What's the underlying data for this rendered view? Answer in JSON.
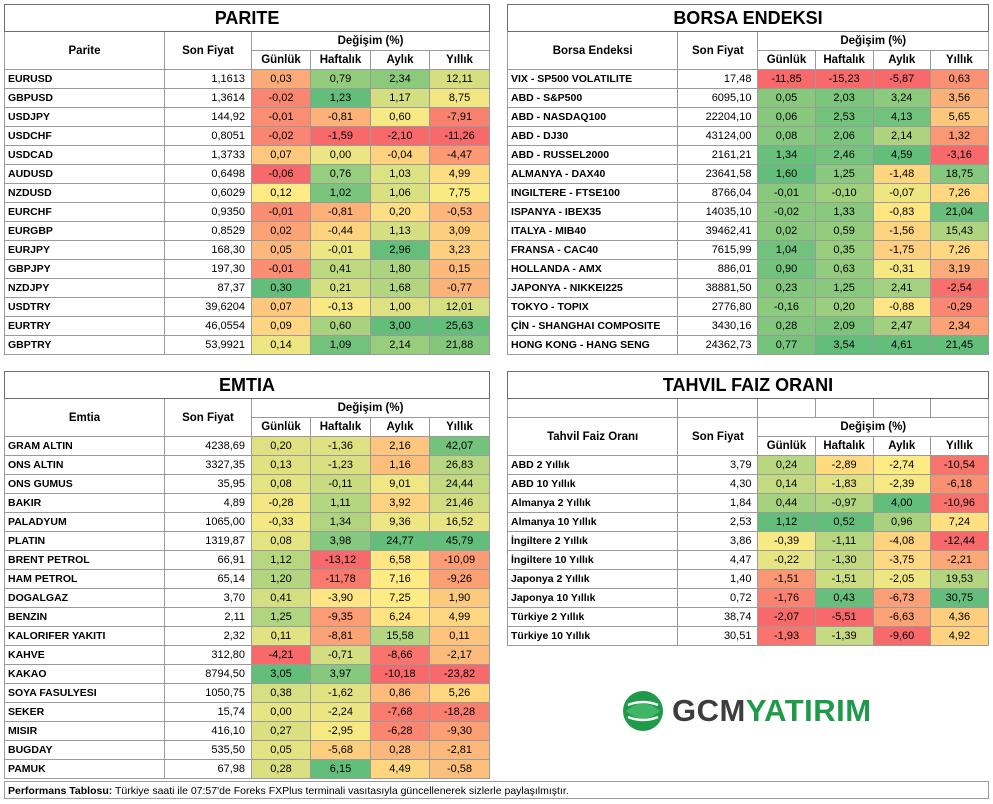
{
  "change_header": "Değişim (%)",
  "period_labels": [
    "Günlük",
    "Haftalık",
    "Aylık",
    "Yıllık"
  ],
  "price_header": "Son Fiyat",
  "parite": {
    "title": "PARITE",
    "name_header": "Parite",
    "rows": [
      {
        "name": "EURUSD",
        "price": "1,1613",
        "d": "0,03",
        "w": "0,79",
        "m": "2,34",
        "y": "12,11"
      },
      {
        "name": "GBPUSD",
        "price": "1,3614",
        "d": "-0,02",
        "w": "1,23",
        "m": "1,17",
        "y": "8,75"
      },
      {
        "name": "USDJPY",
        "price": "144,92",
        "d": "-0,01",
        "w": "-0,81",
        "m": "0,60",
        "y": "-7,91"
      },
      {
        "name": "USDCHF",
        "price": "0,8051",
        "d": "-0,02",
        "w": "-1,59",
        "m": "-2,10",
        "y": "-11,26"
      },
      {
        "name": "USDCAD",
        "price": "1,3733",
        "d": "0,07",
        "w": "0,00",
        "m": "-0,04",
        "y": "-4,47"
      },
      {
        "name": "AUDUSD",
        "price": "0,6498",
        "d": "-0,06",
        "w": "0,76",
        "m": "1,03",
        "y": "4,99"
      },
      {
        "name": "NZDUSD",
        "price": "0,6029",
        "d": "0,12",
        "w": "1,02",
        "m": "1,06",
        "y": "7,75"
      },
      {
        "name": "EURCHF",
        "price": "0,9350",
        "d": "-0,01",
        "w": "-0,81",
        "m": "0,20",
        "y": "-0,53"
      },
      {
        "name": "EURGBP",
        "price": "0,8529",
        "d": "0,02",
        "w": "-0,44",
        "m": "1,13",
        "y": "3,09"
      },
      {
        "name": "EURJPY",
        "price": "168,30",
        "d": "0,05",
        "w": "-0,01",
        "m": "2,96",
        "y": "3,23"
      },
      {
        "name": "GBPJPY",
        "price": "197,30",
        "d": "-0,01",
        "w": "0,41",
        "m": "1,80",
        "y": "0,15"
      },
      {
        "name": "NZDJPY",
        "price": "87,37",
        "d": "0,30",
        "w": "0,21",
        "m": "1,68",
        "y": "-0,77"
      },
      {
        "name": "USDTRY",
        "price": "39,6204",
        "d": "0,07",
        "w": "-0,13",
        "m": "1,00",
        "y": "12,01"
      },
      {
        "name": "EURTRY",
        "price": "46,0554",
        "d": "0,09",
        "w": "0,60",
        "m": "3,00",
        "y": "25,63"
      },
      {
        "name": "GBPTRY",
        "price": "53,9921",
        "d": "0,14",
        "w": "1,09",
        "m": "2,14",
        "y": "21,88"
      }
    ]
  },
  "borsa": {
    "title": "BORSA ENDEKSI",
    "name_header": "Borsa Endeksi",
    "rows": [
      {
        "name": "VIX - SP500 VOLATILITE",
        "price": "17,48",
        "d": "-11,85",
        "w": "-15,23",
        "m": "-5,87",
        "y": "0,63"
      },
      {
        "name": "ABD - S&P500",
        "price": "6095,10",
        "d": "0,05",
        "w": "2,03",
        "m": "3,24",
        "y": "3,56"
      },
      {
        "name": "ABD - NASDAQ100",
        "price": "22204,10",
        "d": "0,06",
        "w": "2,53",
        "m": "4,13",
        "y": "5,65"
      },
      {
        "name": "ABD - DJ30",
        "price": "43124,00",
        "d": "0,08",
        "w": "2,06",
        "m": "2,14",
        "y": "1,32"
      },
      {
        "name": "ABD - RUSSEL2000",
        "price": "2161,21",
        "d": "1,34",
        "w": "2,46",
        "m": "4,59",
        "y": "-3,16"
      },
      {
        "name": "ALMANYA - DAX40",
        "price": "23641,58",
        "d": "1,60",
        "w": "1,25",
        "m": "-1,48",
        "y": "18,75"
      },
      {
        "name": "INGILTERE - FTSE100",
        "price": "8766,04",
        "d": "-0,01",
        "w": "-0,10",
        "m": "-0,07",
        "y": "7,26"
      },
      {
        "name": "ISPANYA - IBEX35",
        "price": "14035,10",
        "d": "-0,02",
        "w": "1,33",
        "m": "-0,83",
        "y": "21,04"
      },
      {
        "name": "ITALYA - MIB40",
        "price": "39462,41",
        "d": "0,02",
        "w": "0,59",
        "m": "-1,56",
        "y": "15,43"
      },
      {
        "name": "FRANSA - CAC40",
        "price": "7615,99",
        "d": "1,04",
        "w": "0,35",
        "m": "-1,75",
        "y": "7,26"
      },
      {
        "name": "HOLLANDA - AMX",
        "price": "886,01",
        "d": "0,90",
        "w": "0,63",
        "m": "-0,31",
        "y": "3,19"
      },
      {
        "name": "JAPONYA - NIKKEI225",
        "price": "38881,50",
        "d": "0,23",
        "w": "1,25",
        "m": "2,41",
        "y": "-2,54"
      },
      {
        "name": "TOKYO - TOPIX",
        "price": "2776,80",
        "d": "-0,16",
        "w": "0,20",
        "m": "-0,88",
        "y": "-0,29"
      },
      {
        "name": "ÇİN - SHANGHAI COMPOSITE",
        "price": "3430,16",
        "d": "0,28",
        "w": "2,09",
        "m": "2,47",
        "y": "2,34"
      },
      {
        "name": "HONG KONG - HANG SENG",
        "price": "24362,73",
        "d": "0,77",
        "w": "3,54",
        "m": "4,61",
        "y": "21,45"
      }
    ]
  },
  "emtia": {
    "title": "EMTIA",
    "name_header": "Emtia",
    "rows": [
      {
        "name": "GRAM ALTIN",
        "price": "4238,69",
        "d": "0,20",
        "w": "-1,36",
        "m": "2,16",
        "y": "42,07"
      },
      {
        "name": "ONS ALTIN",
        "price": "3327,35",
        "d": "0,13",
        "w": "-1,23",
        "m": "1,16",
        "y": "26,83"
      },
      {
        "name": "ONS GUMUS",
        "price": "35,95",
        "d": "0,08",
        "w": "-0,11",
        "m": "9,01",
        "y": "24,44"
      },
      {
        "name": "BAKIR",
        "price": "4,89",
        "d": "-0,28",
        "w": "1,11",
        "m": "3,92",
        "y": "21,46"
      },
      {
        "name": "PALADYUM",
        "price": "1065,00",
        "d": "-0,33",
        "w": "1,34",
        "m": "9,36",
        "y": "16,52"
      },
      {
        "name": "PLATIN",
        "price": "1319,87",
        "d": "0,08",
        "w": "3,98",
        "m": "24,77",
        "y": "45,79"
      },
      {
        "name": "BRENT PETROL",
        "price": "66,91",
        "d": "1,12",
        "w": "-13,12",
        "m": "6,58",
        "y": "-10,09"
      },
      {
        "name": "HAM PETROL",
        "price": "65,14",
        "d": "1,20",
        "w": "-11,78",
        "m": "7,16",
        "y": "-9,26"
      },
      {
        "name": "DOGALGAZ",
        "price": "3,70",
        "d": "0,41",
        "w": "-3,90",
        "m": "7,25",
        "y": "1,90"
      },
      {
        "name": "BENZIN",
        "price": "2,11",
        "d": "1,25",
        "w": "-9,35",
        "m": "6,24",
        "y": "4,99"
      },
      {
        "name": "KALORIFER YAKITI",
        "price": "2,32",
        "d": "0,11",
        "w": "-8,81",
        "m": "15,58",
        "y": "0,11"
      },
      {
        "name": "KAHVE",
        "price": "312,80",
        "d": "-4,21",
        "w": "-0,71",
        "m": "-8,66",
        "y": "-2,17"
      },
      {
        "name": "KAKAO",
        "price": "8794,50",
        "d": "3,05",
        "w": "3,97",
        "m": "-10,18",
        "y": "-23,82"
      },
      {
        "name": "SOYA FASULYESI",
        "price": "1050,75",
        "d": "0,38",
        "w": "-1,62",
        "m": "0,86",
        "y": "5,26"
      },
      {
        "name": "SEKER",
        "price": "15,74",
        "d": "0,00",
        "w": "-2,24",
        "m": "-7,68",
        "y": "-18,28"
      },
      {
        "name": "MISIR",
        "price": "416,10",
        "d": "0,27",
        "w": "-2,95",
        "m": "-6,28",
        "y": "-9,30"
      },
      {
        "name": "BUGDAY",
        "price": "535,50",
        "d": "0,05",
        "w": "-5,68",
        "m": "0,28",
        "y": "-2,81"
      },
      {
        "name": "PAMUK",
        "price": "67,98",
        "d": "0,28",
        "w": "6,15",
        "m": "4,49",
        "y": "-0,58"
      }
    ]
  },
  "tahvil": {
    "title": "TAHVIL FAIZ ORANI",
    "name_header": "Tahvil Faiz Oranı",
    "rows": [
      {
        "name": "ABD 2 Yıllık",
        "price": "3,79",
        "d": "0,24",
        "w": "-2,89",
        "m": "-2,74",
        "y": "-10,54"
      },
      {
        "name": "ABD 10 Yıllık",
        "price": "4,30",
        "d": "0,14",
        "w": "-1,83",
        "m": "-2,39",
        "y": "-6,18"
      },
      {
        "name": "Almanya 2 Yıllık",
        "price": "1,84",
        "d": "0,44",
        "w": "-0,97",
        "m": "4,00",
        "y": "-10,96"
      },
      {
        "name": "Almanya 10 Yıllık",
        "price": "2,53",
        "d": "1,12",
        "w": "0,52",
        "m": "0,96",
        "y": "7,24"
      },
      {
        "name": "İngiltere 2 Yıllık",
        "price": "3,86",
        "d": "-0,39",
        "w": "-1,11",
        "m": "-4,08",
        "y": "-12,44"
      },
      {
        "name": "İngiltere 10 Yıllık",
        "price": "4,47",
        "d": "-0,22",
        "w": "-1,30",
        "m": "-3,75",
        "y": "-2,21"
      },
      {
        "name": "Japonya 2 Yıllık",
        "price": "1,40",
        "d": "-1,51",
        "w": "-1,51",
        "m": "-2,05",
        "y": "19,53"
      },
      {
        "name": "Japonya 10 Yıllık",
        "price": "0,72",
        "d": "-1,76",
        "w": "0,43",
        "m": "-6,73",
        "y": "30,75"
      },
      {
        "name": "Türkiye 2 Yıllık",
        "price": "38,74",
        "d": "-2,07",
        "w": "-5,51",
        "m": "-6,63",
        "y": "4,36"
      },
      {
        "name": "Türkiye 10 Yıllık",
        "price": "30,51",
        "d": "-1,93",
        "w": "-1,39",
        "m": "-9,60",
        "y": "4,92"
      }
    ]
  },
  "logo": {
    "part1": "GCM",
    "part2": "YATIRIM",
    "color1": "#3d3d3d",
    "color2": "#1f9a4a"
  },
  "footer": {
    "label": "Performans Tablosu:",
    "text": " Türkiye saati ile 07:57'de Foreks FXPlus terminali vasıtasıyla güncellenerek sizlerle paylaşılmıştır."
  },
  "colors": {
    "red": "#f8696b",
    "yellow": "#ffeb84",
    "green": "#63be7b"
  }
}
